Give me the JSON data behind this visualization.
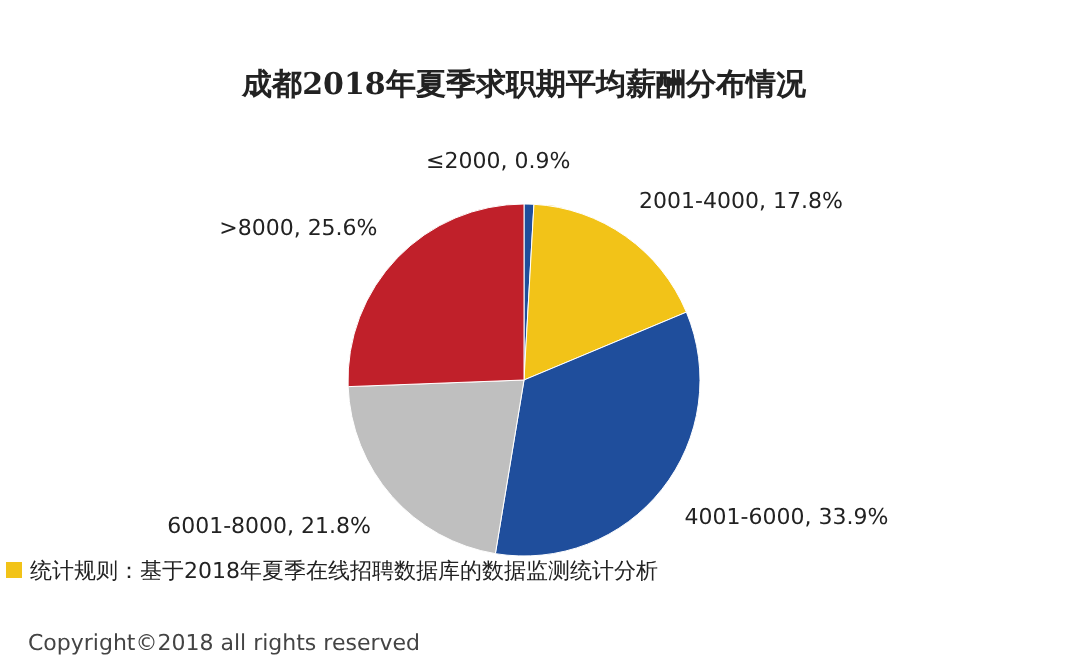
{
  "chart_data": {
    "type": "pie",
    "title": "成都2018年夏季求职期平均薪酬分布情况",
    "categories": [
      "≤2000",
      "2001-4000",
      "4001-6000",
      "6001-8000",
      ">8000"
    ],
    "values": [
      0.9,
      17.8,
      33.9,
      21.8,
      25.6
    ],
    "value_labels": [
      "0.9%",
      "17.8%",
      "33.9%",
      "21.8%",
      "25.6%"
    ],
    "colors": [
      "#1f4e9c",
      "#f2c318",
      "#1f4e9c",
      "#bfbfbf",
      "#c0202a"
    ],
    "legend": false,
    "annotations": [
      "统计规则：基于2018年夏季在线招聘数据库的数据监测统计分析",
      "Copyright©2018 all rights reserved"
    ]
  }
}
